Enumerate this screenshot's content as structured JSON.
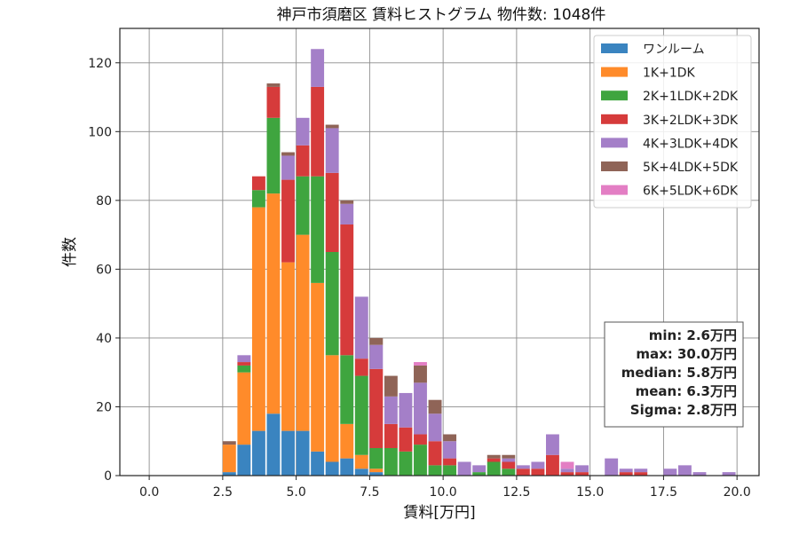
{
  "chart_data": {
    "type": "bar",
    "stacked": true,
    "title": "神戸市須磨区 賃料ヒストグラム  物件数: 1048件",
    "xlabel": "賃料[万円]",
    "ylabel": "件数",
    "xlim": [
      -1.0,
      20.75
    ],
    "ylim": [
      0,
      130
    ],
    "x_ticks": [
      "0.0",
      "2.5",
      "5.0",
      "7.5",
      "10.0",
      "12.5",
      "15.0",
      "17.5",
      "20.0"
    ],
    "x_tick_values": [
      0,
      2.5,
      5,
      7.5,
      10,
      12.5,
      15,
      17.5,
      20
    ],
    "y_ticks": [
      "0",
      "20",
      "40",
      "60",
      "80",
      "100",
      "120"
    ],
    "y_tick_values": [
      0,
      20,
      40,
      60,
      80,
      100,
      120
    ],
    "grid": true,
    "legend_position": "top-right",
    "bin_width": 0.5,
    "x": [
      2.5,
      3.0,
      3.5,
      4.0,
      4.5,
      5.0,
      5.5,
      6.0,
      6.5,
      7.0,
      7.5,
      8.0,
      8.5,
      9.0,
      9.5,
      10.0,
      10.5,
      11.0,
      11.5,
      12.0,
      12.5,
      13.0,
      13.5,
      14.0,
      14.5,
      15.0,
      15.5,
      16.0,
      16.5,
      17.0,
      17.5,
      18.0,
      18.5,
      19.0,
      19.5
    ],
    "series": [
      {
        "name": "ワンルーム",
        "color": "#3a84c0",
        "values": [
          1,
          9,
          13,
          18,
          13,
          13,
          7,
          4,
          5,
          2,
          1,
          0,
          0,
          0,
          0,
          0,
          0,
          0,
          0,
          0,
          0,
          0,
          0,
          0,
          0,
          0,
          0,
          0,
          0,
          0,
          0,
          0,
          0,
          0,
          0
        ]
      },
      {
        "name": "1K+1DK",
        "color": "#ff8b2a",
        "values": [
          8,
          21,
          65,
          64,
          49,
          57,
          49,
          31,
          10,
          4,
          1,
          0,
          0,
          0,
          0,
          0,
          0,
          0,
          0,
          0,
          0,
          0,
          0,
          0,
          0,
          0,
          0,
          0,
          0,
          0,
          0,
          0,
          0,
          0,
          0
        ]
      },
      {
        "name": "2K+1LDK+2DK",
        "color": "#3fa53f",
        "values": [
          0,
          2,
          5,
          22,
          0,
          17,
          31,
          30,
          20,
          23,
          6,
          8,
          7,
          9,
          3,
          3,
          0,
          1,
          4,
          2,
          0,
          0,
          0,
          0,
          0,
          0,
          0,
          0,
          0,
          0,
          0,
          0,
          0,
          0,
          0
        ]
      },
      {
        "name": "3K+2LDK+3DK",
        "color": "#d63b3b",
        "values": [
          0,
          1,
          4,
          9,
          24,
          9,
          26,
          23,
          38,
          5,
          23,
          7,
          7,
          3,
          7,
          2,
          0,
          0,
          1,
          2,
          2,
          2,
          6,
          1,
          1,
          0,
          0,
          1,
          1,
          0,
          0,
          0,
          0,
          0,
          0
        ]
      },
      {
        "name": "4K+3LDK+4DK",
        "color": "#a47fc8",
        "values": [
          0,
          2,
          0,
          0,
          7,
          8,
          11,
          13,
          6,
          18,
          7,
          8,
          10,
          15,
          8,
          5,
          4,
          2,
          0,
          1,
          1,
          2,
          6,
          1,
          2,
          0,
          5,
          1,
          1,
          0,
          2,
          3,
          1,
          0,
          1
        ]
      },
      {
        "name": "5K+4LDK+5DK",
        "color": "#8f6457",
        "values": [
          1,
          0,
          0,
          1,
          1,
          0,
          0,
          1,
          1,
          0,
          2,
          6,
          0,
          5,
          4,
          2,
          0,
          0,
          1,
          1,
          0,
          0,
          0,
          0,
          0,
          0,
          0,
          0,
          0,
          0,
          0,
          0,
          0,
          0,
          0
        ]
      },
      {
        "name": "6K+5LDK+6DK",
        "color": "#e37ec4",
        "values": [
          0,
          0,
          0,
          0,
          0,
          0,
          0,
          0,
          0,
          0,
          0,
          0,
          0,
          1,
          0,
          0,
          0,
          0,
          0,
          0,
          0,
          0,
          0,
          2,
          0,
          0,
          0,
          0,
          0,
          0,
          0,
          0,
          0,
          0,
          0
        ]
      }
    ],
    "stats": [
      "min: 2.6万円",
      "max: 30.0万円",
      "median: 5.8万円",
      "mean: 6.3万円",
      "Sigma: 2.8万円"
    ]
  }
}
